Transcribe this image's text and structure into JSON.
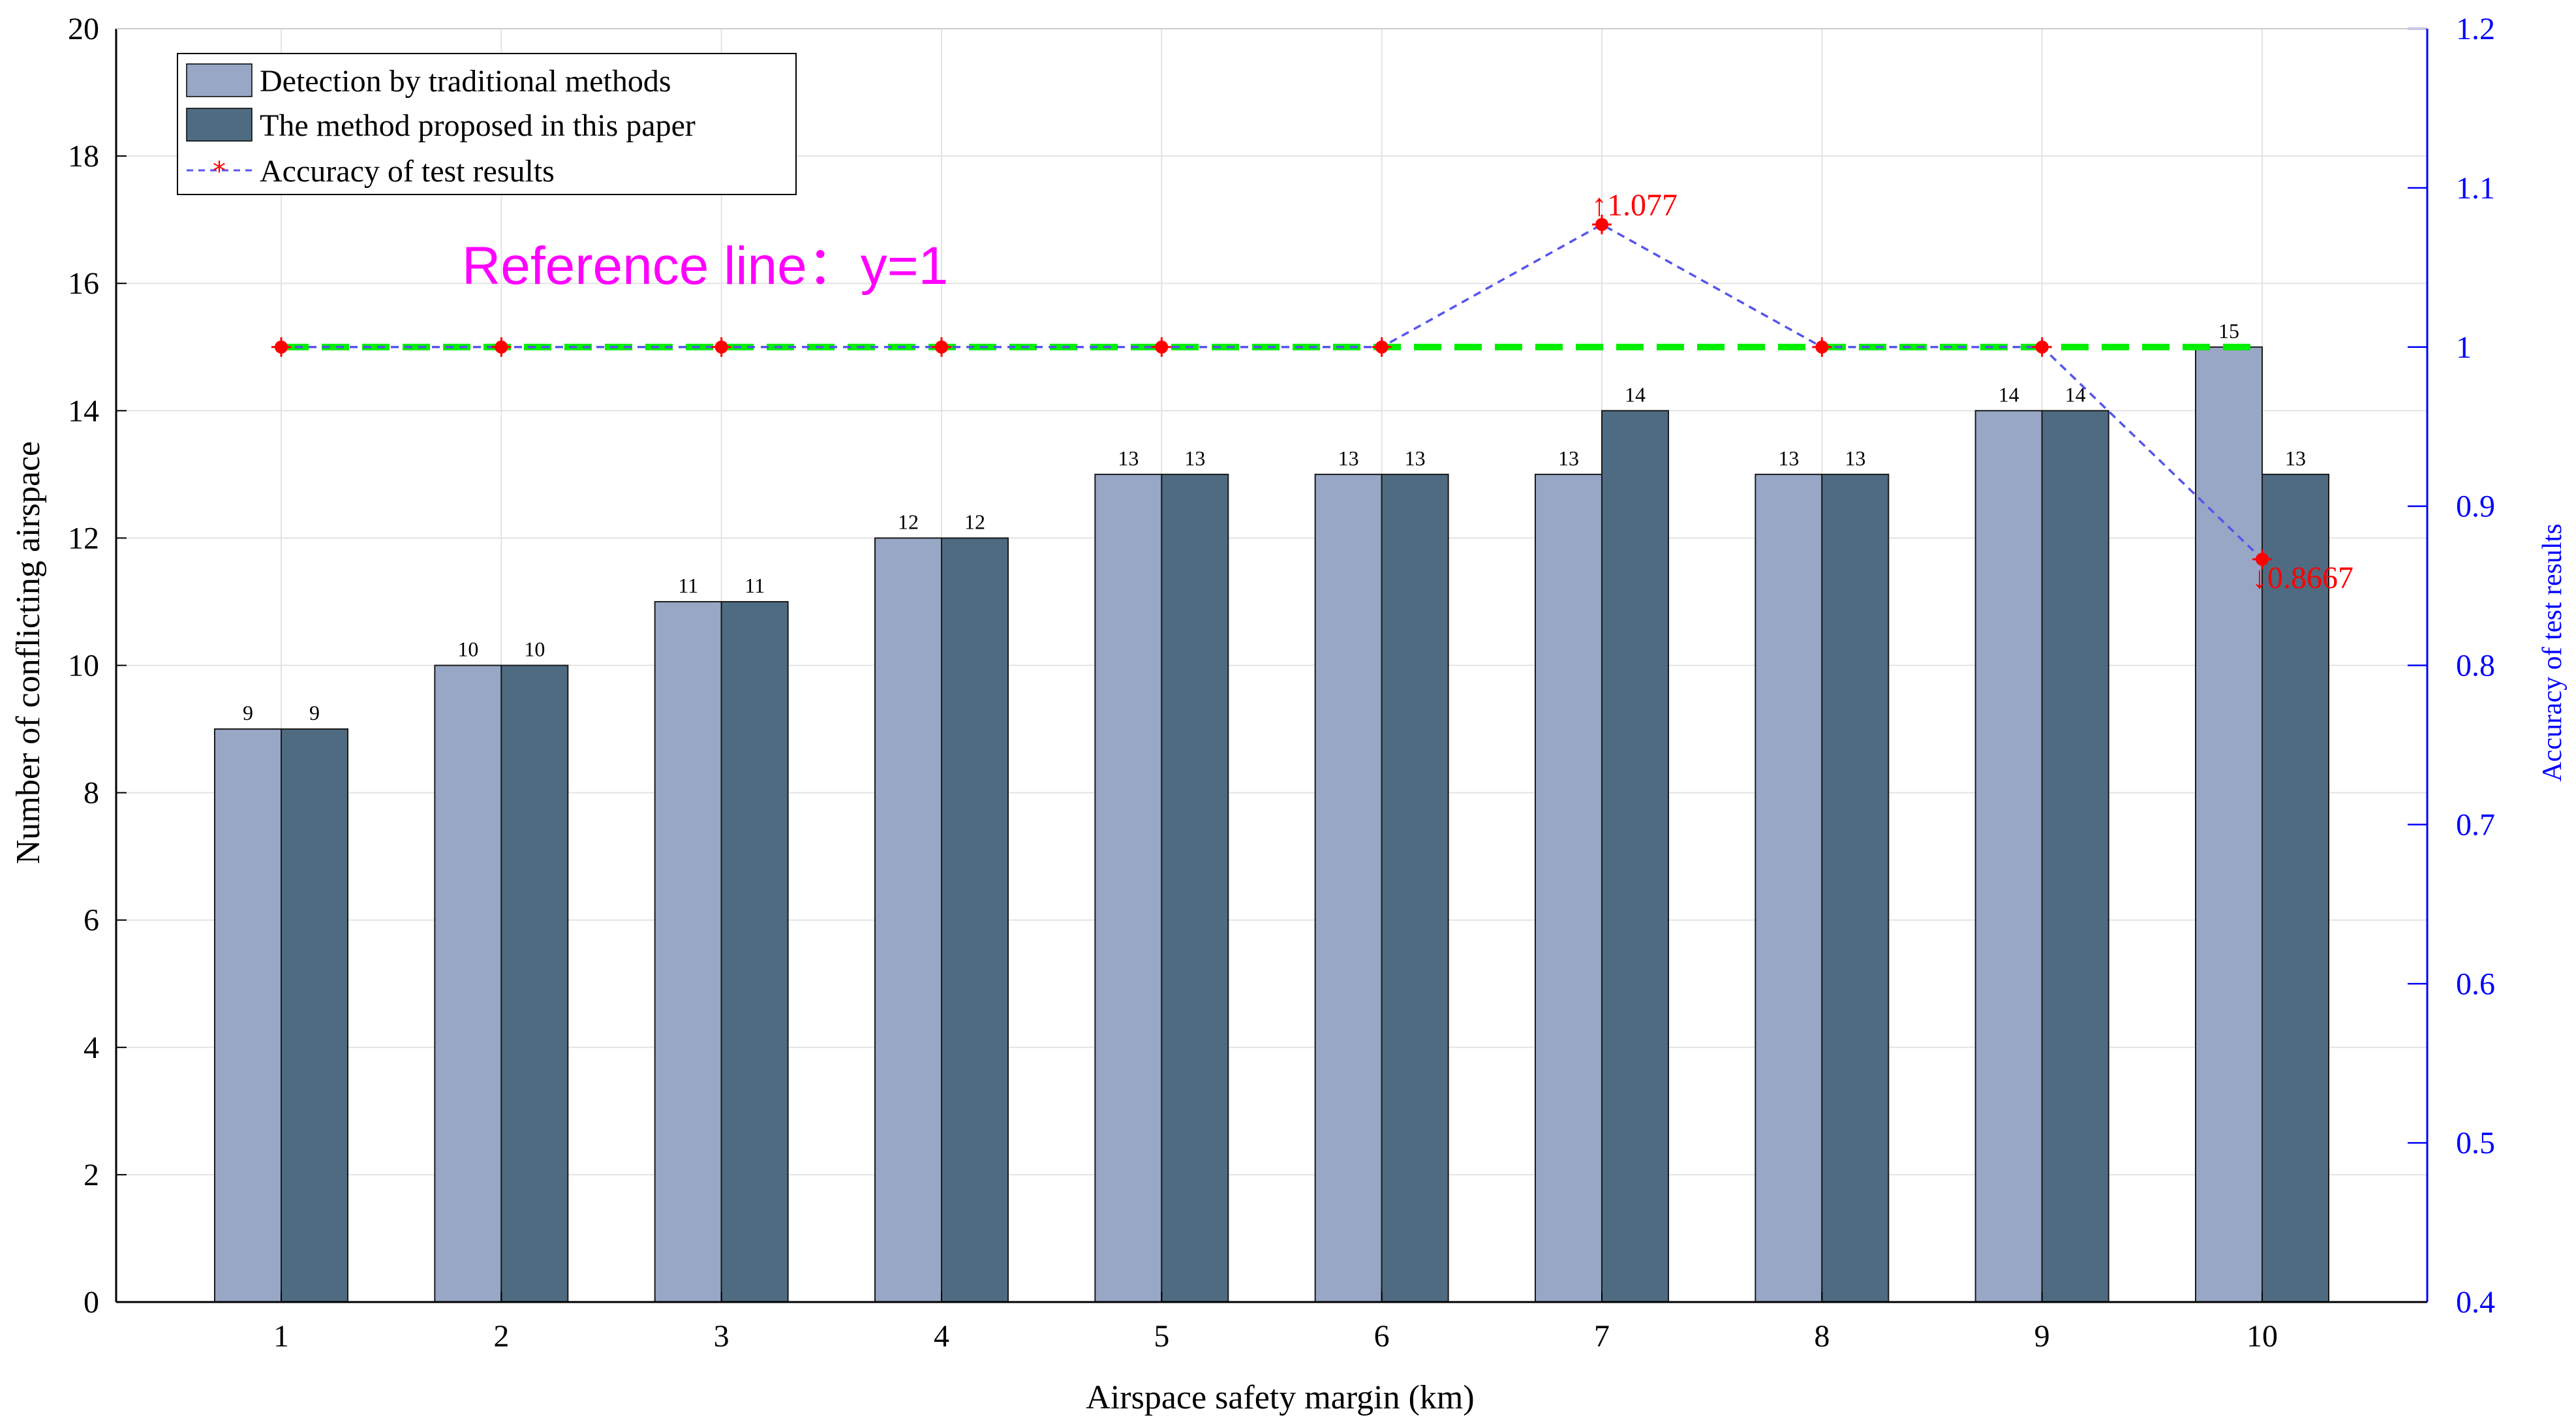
{
  "chart_data": {
    "type": "bar",
    "categories": [
      "1",
      "2",
      "3",
      "4",
      "5",
      "6",
      "7",
      "8",
      "9",
      "10"
    ],
    "series": [
      {
        "name": "Detection by traditional methods",
        "values": [
          9,
          10,
          11,
          12,
          13,
          13,
          13,
          13,
          14,
          15
        ],
        "axis": "left",
        "color": "#97a7c5"
      },
      {
        "name": "The method proposed in this paper",
        "values": [
          9,
          10,
          11,
          12,
          13,
          13,
          14,
          13,
          14,
          13
        ],
        "axis": "left",
        "color": "#4e6b82"
      },
      {
        "name": "Accuracy of test results",
        "type": "line",
        "values": [
          1,
          1,
          1,
          1,
          1,
          1,
          1.077,
          1,
          1,
          0.8667
        ],
        "axis": "right",
        "color": "#5555ee",
        "marker_color": "#ff0000"
      }
    ],
    "bar_labels": {
      "traditional": [
        "9",
        "10",
        "11",
        "12",
        "13",
        "13",
        "13",
        "13",
        "14",
        "15"
      ],
      "proposed": [
        "9",
        "10",
        "11",
        "12",
        "13",
        "13",
        "14",
        "13",
        "14",
        "13"
      ]
    },
    "reference_line": {
      "y": 1,
      "label": "Reference line：y=1",
      "color": "#00ee00"
    },
    "annotations": [
      {
        "x": "7",
        "y": 1.077,
        "text": "↑1.077"
      },
      {
        "x": "10",
        "y": 0.8667,
        "text": "↓0.8667"
      }
    ],
    "xlabel": "Airspace safety margin  (km)",
    "ylabel": "Number of conflicting airspace",
    "ylabel_right": "Accuracy of test results",
    "ylim": [
      0,
      20
    ],
    "ylim_right": [
      0.4,
      1.2
    ],
    "yticks": [
      "0",
      "2",
      "4",
      "6",
      "8",
      "10",
      "12",
      "14",
      "16",
      "18",
      "20"
    ],
    "yticks_right": [
      "0.4",
      "0.5",
      "0.6",
      "0.7",
      "0.8",
      "0.9",
      "1",
      "1.1",
      "1.2"
    ],
    "grid": true,
    "legend_position": "top-left",
    "colors": {
      "left_axis": "#000000",
      "right_axis": "#0000ff"
    }
  }
}
